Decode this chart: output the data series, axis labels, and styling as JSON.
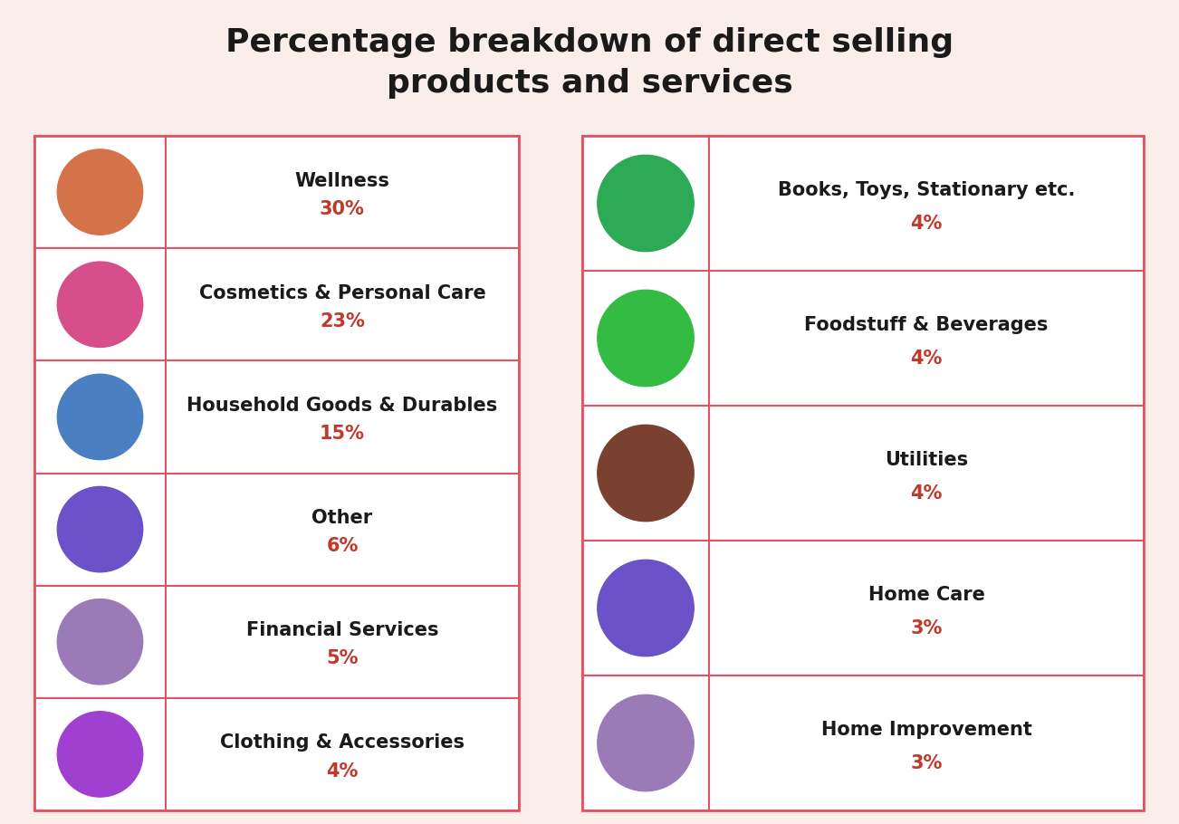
{
  "title": "Percentage breakdown of direct selling\nproducts and services",
  "title_fontsize": 26,
  "background_color": "#f9eeea",
  "cell_bg": "#ffffff",
  "border_color": "#e05565",
  "text_color": "#1a1a1a",
  "pct_color": "#c0392b",
  "label_fontsize": 15,
  "pct_fontsize": 15,
  "left_items": [
    {
      "label": "Wellness",
      "pct": "30%",
      "icon_color": "#d4724a"
    },
    {
      "label": "Cosmetics & Personal Care",
      "pct": "23%",
      "icon_color": "#d64f8a"
    },
    {
      "label": "Household Goods & Durables",
      "pct": "15%",
      "icon_color": "#4a7fc1"
    },
    {
      "label": "Other",
      "pct": "6%",
      "icon_color": "#6b52c8"
    },
    {
      "label": "Financial Services",
      "pct": "5%",
      "icon_color": "#9b7ab8"
    },
    {
      "label": "Clothing & Accessories",
      "pct": "4%",
      "icon_color": "#a040d0"
    }
  ],
  "right_items": [
    {
      "label": "Books, Toys, Stationary etc.",
      "pct": "4%",
      "icon_color": "#2daa55"
    },
    {
      "label": "Foodstuff & Beverages",
      "pct": "4%",
      "icon_color": "#33bb44"
    },
    {
      "label": "Utilities",
      "pct": "4%",
      "icon_color": "#7a4030"
    },
    {
      "label": "Home Care",
      "pct": "3%",
      "icon_color": "#6b52c8"
    },
    {
      "label": "Home Improvement",
      "pct": "3%",
      "icon_color": "#9b7ab8"
    }
  ]
}
